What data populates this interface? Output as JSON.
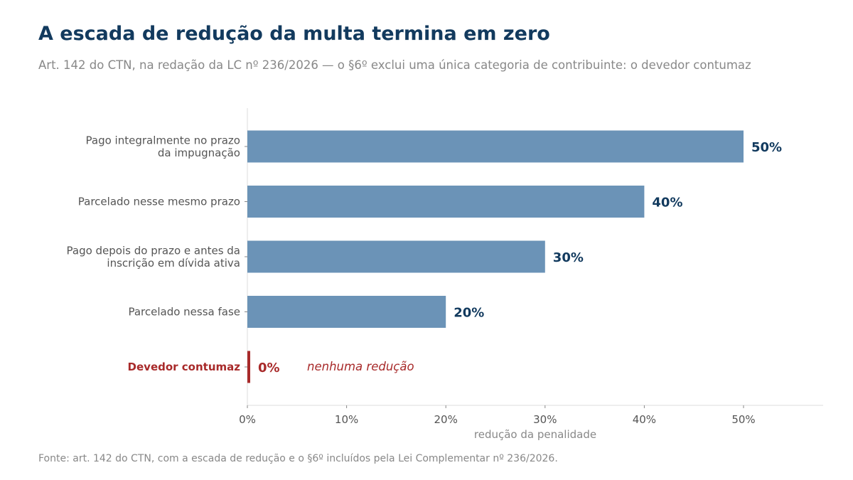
{
  "header": {
    "title": "A escada de redução da multa termina em zero",
    "subtitle": "Art. 142 do CTN, na redação da LC nº 236/2026 — o §6º exclui uma única categoria de contribuinte: o devedor contumaz"
  },
  "footer": {
    "source": "Fonte: art. 142 do CTN, com a escada de redução e o §6º incluídos pela Lei Complementar nº 236/2026."
  },
  "chart_data": {
    "type": "bar",
    "orientation": "horizontal",
    "categories": [
      [
        "Pago integralmente no prazo",
        "da impugnação"
      ],
      [
        "Parcelado nesse mesmo prazo"
      ],
      [
        "Pago depois do prazo e antes da",
        "inscrição em dívida ativa"
      ],
      [
        "Parcelado nessa fase"
      ],
      [
        "Devedor contumaz"
      ]
    ],
    "values": [
      50,
      40,
      30,
      20,
      0
    ],
    "value_labels": [
      "50%",
      "40%",
      "30%",
      "20%",
      "0%"
    ],
    "highlight_index": 4,
    "annotation": "nenhuma redução",
    "xlabel": "redução da penalidade",
    "ylabel": "",
    "xlim": [
      0,
      58
    ],
    "xticks": [
      0,
      10,
      20,
      30,
      40,
      50
    ],
    "xtick_labels": [
      "0%",
      "10%",
      "20%",
      "30%",
      "40%",
      "50%"
    ],
    "grid": false,
    "colors": {
      "bar": "#6b93b7",
      "highlight": "#a82a2a",
      "value_label": "#123a5e",
      "axis": "#dddddd",
      "tick_text": "#555555",
      "category_text": "#555555"
    }
  }
}
